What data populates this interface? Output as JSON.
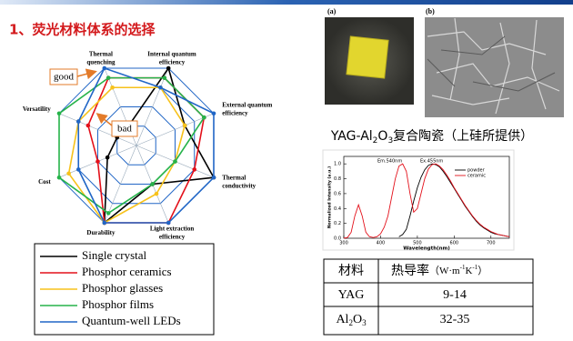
{
  "header": {
    "title": "1、荧光材料体系的选择"
  },
  "annotations": {
    "good": "good",
    "bad": "bad"
  },
  "chart_data": [
    {
      "type": "radar",
      "categories": [
        "Thermal\nquenching",
        "Internal quantum\nefficiency",
        "External quantum\nefficiency",
        "Thermal\nconductivity",
        "Light extraction\nefficiency",
        "Durability",
        "Cost",
        "Versatility"
      ],
      "rlim": [
        0,
        4
      ],
      "rticks": [
        1,
        2,
        3,
        4
      ],
      "grid": true,
      "series": [
        {
          "name": "Single crystal",
          "color": "#000000",
          "values": [
            1,
            4,
            2.5,
            4,
            2,
            4,
            1.5,
            1
          ]
        },
        {
          "name": "Phosphor ceramics",
          "color": "#e3101a",
          "values": [
            3.5,
            3.5,
            3.5,
            3,
            4,
            4,
            2,
            2.5
          ]
        },
        {
          "name": "Phosphor glasses",
          "color": "#f7c21b",
          "values": [
            3,
            3,
            2.5,
            2,
            2.5,
            4,
            3.5,
            3
          ]
        },
        {
          "name": "Phosphor films",
          "color": "#26b34a",
          "values": [
            3.5,
            3.5,
            3.5,
            2,
            2,
            3.5,
            4,
            4
          ]
        },
        {
          "name": "Quantum-well LEDs",
          "color": "#2166c6",
          "values": [
            4,
            3,
            4,
            4,
            4,
            4,
            3,
            3
          ]
        }
      ]
    },
    {
      "type": "line",
      "x_label": "Wavelength(nm)",
      "y_label": "Normalized Intensity (a.u.)",
      "annotations": [
        "Em.540nm",
        "Ex.455nm"
      ],
      "x": [
        300,
        310,
        320,
        330,
        340,
        350,
        360,
        370,
        380,
        390,
        400,
        410,
        420,
        430,
        440,
        450,
        460,
        470,
        480,
        490,
        500,
        510,
        520,
        530,
        540,
        550,
        560,
        570,
        580,
        590,
        600,
        610,
        620,
        630,
        640,
        650,
        660,
        670,
        680,
        690,
        700,
        710,
        720,
        730,
        740,
        750
      ],
      "xlim": [
        300,
        750
      ],
      "xticks": [
        300,
        400,
        500,
        600,
        700
      ],
      "ylim": [
        0,
        1.1
      ],
      "yticks": [
        {
          "value": 0,
          "label": "0.0"
        },
        0.2,
        0.4,
        0.6,
        0.8,
        {
          "value": 1,
          "label": "1.0"
        }
      ],
      "series": [
        {
          "name": "powder",
          "color": "#000000",
          "values": [
            null,
            null,
            null,
            null,
            null,
            null,
            null,
            null,
            null,
            null,
            null,
            null,
            null,
            null,
            null,
            0.02,
            0.05,
            0.12,
            0.3,
            0.5,
            0.68,
            0.82,
            0.92,
            0.98,
            1.0,
            0.99,
            0.96,
            0.9,
            0.83,
            0.75,
            0.67,
            0.59,
            0.51,
            0.43,
            0.36,
            0.29,
            0.23,
            0.18,
            0.14,
            0.11,
            0.08,
            0.06,
            0.05,
            0.04,
            0.03,
            0.02
          ]
        },
        {
          "name": "ceramic",
          "color": "#e3101a",
          "values": [
            0.0,
            0.01,
            0.08,
            0.3,
            0.45,
            0.3,
            0.08,
            0.02,
            0.01,
            0.02,
            0.06,
            0.15,
            0.3,
            0.55,
            0.8,
            0.97,
            1.0,
            0.9,
            0.6,
            0.35,
            0.4,
            0.6,
            0.8,
            0.93,
            0.99,
            1.0,
            0.97,
            0.92,
            0.85,
            0.77,
            0.68,
            0.6,
            0.52,
            0.44,
            0.37,
            0.3,
            0.24,
            0.19,
            0.15,
            0.12,
            0.09,
            0.07,
            0.05,
            0.04,
            0.03,
            0.02
          ]
        }
      ]
    }
  ],
  "images": {
    "a": "(a)",
    "b": "(b)"
  },
  "caption": [
    "YAG-Al",
    "2",
    "O",
    "3",
    "复合陶瓷（上硅所提供）"
  ],
  "table": {
    "header": [
      "材料",
      "热导率"
    ],
    "unit": [
      "（W·m",
      "-1",
      "K",
      "-1",
      "）"
    ],
    "rows": [
      [
        [
          "YAG"
        ],
        "9-14"
      ],
      [
        [
          "Al",
          "2",
          "O",
          "3"
        ],
        "32-35"
      ]
    ]
  }
}
